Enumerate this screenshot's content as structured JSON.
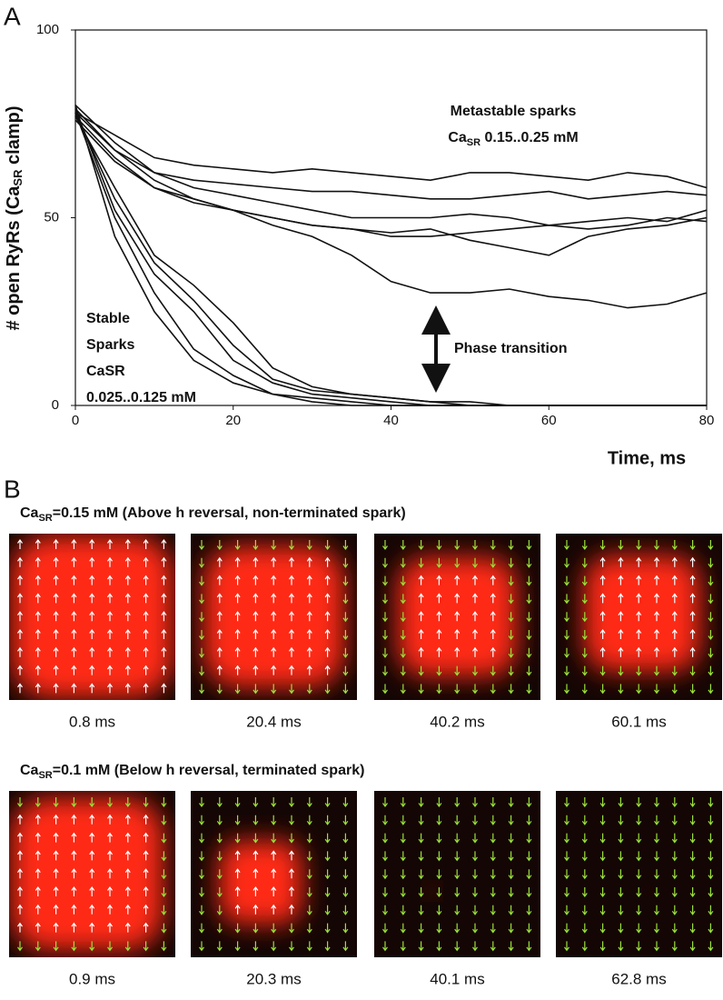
{
  "chart_data": {
    "type": "line",
    "panel_label": "A",
    "y_label_parts": [
      "# open RyRs (Ca",
      "SR",
      " clamp)"
    ],
    "x_label": "Time, ms",
    "x": [
      0,
      5,
      10,
      15,
      20,
      25,
      30,
      35,
      40,
      45,
      50,
      55,
      60,
      65,
      70,
      75,
      80
    ],
    "series": [
      {
        "color": "#111111",
        "values": [
          78,
          72,
          66,
          64,
          63,
          62,
          63,
          62,
          61,
          60,
          62,
          62,
          61,
          60,
          62,
          61,
          58
        ]
      },
      {
        "color": "#111111",
        "values": [
          80,
          70,
          62,
          60,
          59,
          58,
          57,
          57,
          56,
          55,
          55,
          56,
          57,
          55,
          56,
          57,
          56
        ]
      },
      {
        "color": "#111111",
        "values": [
          78,
          68,
          62,
          58,
          56,
          54,
          52,
          50,
          50,
          50,
          51,
          50,
          48,
          49,
          50,
          49,
          52
        ]
      },
      {
        "color": "#111111",
        "values": [
          79,
          68,
          60,
          55,
          52,
          50,
          48,
          47,
          46,
          47,
          44,
          42,
          40,
          45,
          47,
          48,
          50
        ]
      },
      {
        "color": "#111111",
        "values": [
          77,
          66,
          58,
          54,
          52,
          50,
          48,
          47,
          45,
          45,
          46,
          47,
          48,
          47,
          48,
          50,
          49
        ]
      },
      {
        "color": "#111111",
        "values": [
          76,
          65,
          58,
          55,
          52,
          48,
          45,
          40,
          33,
          30,
          30,
          31,
          29,
          28,
          26,
          27,
          30
        ]
      },
      {
        "color": "#111111",
        "values": [
          80,
          45,
          25,
          12,
          6,
          3,
          2,
          1,
          0,
          0,
          0,
          0,
          0,
          0,
          0,
          0,
          0
        ]
      },
      {
        "color": "#111111",
        "values": [
          78,
          50,
          30,
          15,
          8,
          3,
          1,
          0,
          0,
          0,
          0,
          0,
          0,
          0,
          0,
          0,
          0
        ]
      },
      {
        "color": "#111111",
        "values": [
          78,
          55,
          38,
          28,
          16,
          7,
          4,
          3,
          2,
          1,
          0,
          0,
          0,
          0,
          0,
          0,
          0
        ]
      },
      {
        "color": "#111111",
        "values": [
          77,
          58,
          40,
          32,
          22,
          10,
          5,
          3,
          2,
          1,
          1,
          0,
          0,
          0,
          0,
          0,
          0
        ]
      },
      {
        "color": "#111111",
        "values": [
          79,
          52,
          35,
          25,
          12,
          6,
          3,
          2,
          1,
          0,
          0,
          0,
          0,
          0,
          0,
          0,
          0
        ]
      }
    ],
    "xlim": [
      0,
      80
    ],
    "xticks": [
      0,
      20,
      40,
      60,
      80
    ],
    "ylim": [
      0,
      100
    ],
    "yticks": [
      0,
      50,
      100
    ],
    "annotations": {
      "metastable_title": "Metastable sparks",
      "metastable_range_parts": [
        "Ca",
        "SR",
        " 0.15..0.25 mM"
      ],
      "stable_lines": [
        "Stable",
        "Sparks",
        "CaSR",
        "0.025..0.125 mM"
      ],
      "phase_transition": "Phase transition"
    }
  },
  "panel_b": {
    "panel_label": "B",
    "rows": [
      {
        "title_parts": [
          "Ca",
          "SR",
          "=0.15 mM  (Above h reversal, non-terminated spark)"
        ],
        "frames": [
          "0.8 ms",
          "20.4 ms",
          "40.2 ms",
          "60.1 ms"
        ]
      },
      {
        "title_parts": [
          "Ca",
          "SR",
          "=0.1 mM  (Below h reversal, terminated spark)"
        ],
        "frames": [
          "0.9 ms",
          "20.3 ms",
          "40.1 ms",
          "62.8 ms"
        ]
      }
    ]
  }
}
